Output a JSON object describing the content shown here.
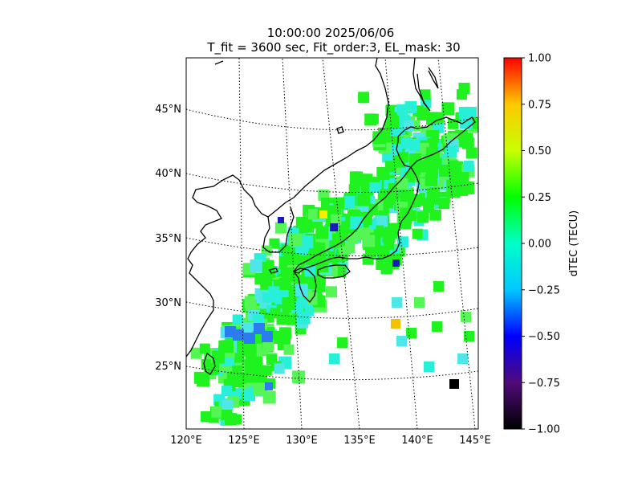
{
  "title_line1": "10:00:00 2025/06/06",
  "title_line2": "T_fit = 3600 sec, Fit_order:3, EL_mask: 30",
  "map": {
    "lat_labels": [
      "45°N",
      "40°N",
      "35°N",
      "30°N",
      "25°N"
    ],
    "lon_labels": [
      "120°E",
      "125°E",
      "130°E",
      "135°E",
      "140°E",
      "145°E"
    ]
  },
  "colorbar": {
    "label": "dTEC (TECU)",
    "ticks": [
      "1.00",
      "0.75",
      "0.50",
      "0.25",
      "0.00",
      "−0.25",
      "−0.50",
      "−0.75",
      "−1.00"
    ],
    "colormap": [
      "#000000",
      "#500a78",
      "#0000ff",
      "#00c8ff",
      "#00ffc8",
      "#00ff00",
      "#c8ff00",
      "#ffc800",
      "#ff0000"
    ]
  },
  "colors": {
    "green": "#1ff21f",
    "light_green": "#55f555",
    "cyan": "#28f0d8",
    "sea_cyan": "#4ee6e6",
    "blue": "#2a7cf0",
    "dark_blue": "#1a1ab8",
    "yellow": "#f5f000",
    "orange": "#f5c000",
    "black": "#000000"
  }
}
